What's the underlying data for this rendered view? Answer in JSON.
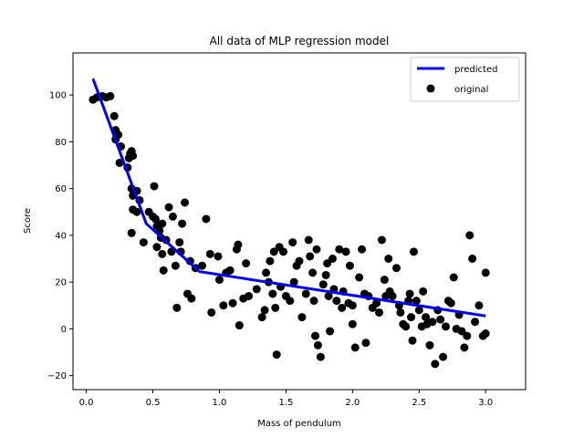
{
  "chart_data": {
    "type": "scatter",
    "title": "All data of MLP regression model",
    "xlabel": "Mass of pendulum",
    "ylabel": "Score",
    "xlim": [
      -0.1,
      3.3
    ],
    "ylim": [
      -26,
      118
    ],
    "xticks": [
      0.0,
      0.5,
      1.0,
      1.5,
      2.0,
      2.5,
      3.0
    ],
    "xtick_labels": [
      "0.0",
      "0.5",
      "1.0",
      "1.5",
      "2.0",
      "2.5",
      "3.0"
    ],
    "yticks": [
      -20,
      0,
      20,
      40,
      60,
      80,
      100
    ],
    "ytick_labels": [
      "−20",
      "0",
      "20",
      "40",
      "60",
      "80",
      "100"
    ],
    "grid": false,
    "legend_position": "top-right",
    "series": [
      {
        "name": "predicted",
        "kind": "line",
        "color": "#0000ff",
        "points": [
          [
            0.05,
            107
          ],
          [
            0.45,
            45
          ],
          [
            0.85,
            24.5
          ],
          [
            3.0,
            5.5
          ]
        ]
      },
      {
        "name": "original",
        "kind": "scatter",
        "color": "#000000",
        "points": [
          [
            0.05,
            98
          ],
          [
            0.08,
            99
          ],
          [
            0.12,
            99.5
          ],
          [
            0.15,
            99
          ],
          [
            0.18,
            99.5
          ],
          [
            0.21,
            91
          ],
          [
            0.22,
            85
          ],
          [
            0.22,
            81
          ],
          [
            0.24,
            83
          ],
          [
            0.25,
            71
          ],
          [
            0.26,
            78
          ],
          [
            0.31,
            69
          ],
          [
            0.32,
            73
          ],
          [
            0.33,
            75
          ],
          [
            0.34,
            76
          ],
          [
            0.35,
            74
          ],
          [
            0.34,
            60
          ],
          [
            0.35,
            57
          ],
          [
            0.38,
            59
          ],
          [
            0.35,
            51
          ],
          [
            0.34,
            41
          ],
          [
            0.38,
            50
          ],
          [
            0.4,
            55
          ],
          [
            0.43,
            37
          ],
          [
            0.47,
            50
          ],
          [
            0.5,
            48
          ],
          [
            0.51,
            61
          ],
          [
            0.52,
            47
          ],
          [
            0.53,
            44
          ],
          [
            0.53,
            35
          ],
          [
            0.55,
            42
          ],
          [
            0.56,
            39
          ],
          [
            0.57,
            45
          ],
          [
            0.57,
            32
          ],
          [
            0.58,
            25
          ],
          [
            0.6,
            38
          ],
          [
            0.62,
            52
          ],
          [
            0.64,
            33
          ],
          [
            0.65,
            48
          ],
          [
            0.67,
            27
          ],
          [
            0.68,
            9
          ],
          [
            0.7,
            37
          ],
          [
            0.71,
            33
          ],
          [
            0.72,
            45
          ],
          [
            0.74,
            54
          ],
          [
            0.76,
            15
          ],
          [
            0.78,
            29
          ],
          [
            0.79,
            13
          ],
          [
            0.82,
            26
          ],
          [
            0.87,
            27
          ],
          [
            0.9,
            47
          ],
          [
            0.93,
            32
          ],
          [
            0.94,
            7
          ],
          [
            0.99,
            31
          ],
          [
            1.0,
            21
          ],
          [
            1.03,
            10
          ],
          [
            1.05,
            24
          ],
          [
            1.08,
            25
          ],
          [
            1.1,
            11
          ],
          [
            1.13,
            34
          ],
          [
            1.14,
            36
          ],
          [
            1.15,
            1.5
          ],
          [
            1.18,
            13
          ],
          [
            1.2,
            28
          ],
          [
            1.22,
            14
          ],
          [
            1.28,
            17
          ],
          [
            1.32,
            5
          ],
          [
            1.34,
            8
          ],
          [
            1.35,
            24
          ],
          [
            1.37,
            20
          ],
          [
            1.38,
            29
          ],
          [
            1.4,
            15
          ],
          [
            1.41,
            33
          ],
          [
            1.42,
            9
          ],
          [
            1.43,
            -11
          ],
          [
            1.45,
            35
          ],
          [
            1.46,
            18
          ],
          [
            1.48,
            33
          ],
          [
            1.5,
            14
          ],
          [
            1.53,
            12
          ],
          [
            1.55,
            37
          ],
          [
            1.56,
            20
          ],
          [
            1.58,
            27
          ],
          [
            1.6,
            29
          ],
          [
            1.62,
            5
          ],
          [
            1.65,
            15
          ],
          [
            1.67,
            38
          ],
          [
            1.68,
            31
          ],
          [
            1.7,
            24
          ],
          [
            1.71,
            12
          ],
          [
            1.72,
            -3
          ],
          [
            1.73,
            34
          ],
          [
            1.74,
            -7
          ],
          [
            1.76,
            -12
          ],
          [
            1.78,
            19
          ],
          [
            1.8,
            23
          ],
          [
            1.81,
            28
          ],
          [
            1.82,
            14
          ],
          [
            1.83,
            -1
          ],
          [
            1.85,
            30
          ],
          [
            1.86,
            17
          ],
          [
            1.88,
            12
          ],
          [
            1.9,
            34
          ],
          [
            1.92,
            9
          ],
          [
            1.93,
            16
          ],
          [
            1.95,
            33
          ],
          [
            1.97,
            11
          ],
          [
            1.98,
            27
          ],
          [
            2.0,
            10
          ],
          [
            2.0,
            2
          ],
          [
            2.02,
            -8
          ],
          [
            2.05,
            22
          ],
          [
            2.07,
            34
          ],
          [
            2.09,
            15
          ],
          [
            2.1,
            -6
          ],
          [
            2.12,
            14
          ],
          [
            2.15,
            9
          ],
          [
            2.18,
            11
          ],
          [
            2.2,
            7
          ],
          [
            2.22,
            38
          ],
          [
            2.24,
            21
          ],
          [
            2.25,
            14
          ],
          [
            2.27,
            30
          ],
          [
            2.28,
            16
          ],
          [
            2.3,
            14
          ],
          [
            2.33,
            26
          ],
          [
            2.35,
            10
          ],
          [
            2.36,
            7
          ],
          [
            2.38,
            2
          ],
          [
            2.4,
            1
          ],
          [
            2.42,
            12
          ],
          [
            2.43,
            15
          ],
          [
            2.44,
            5
          ],
          [
            2.45,
            -5
          ],
          [
            2.46,
            33
          ],
          [
            2.48,
            12
          ],
          [
            2.5,
            8
          ],
          [
            2.52,
            1
          ],
          [
            2.53,
            16
          ],
          [
            2.55,
            5
          ],
          [
            2.56,
            2
          ],
          [
            2.58,
            -7
          ],
          [
            2.6,
            3
          ],
          [
            2.62,
            -15
          ],
          [
            2.64,
            8
          ],
          [
            2.66,
            4
          ],
          [
            2.68,
            -12
          ],
          [
            2.7,
            1
          ],
          [
            2.72,
            12
          ],
          [
            2.74,
            11
          ],
          [
            2.76,
            22
          ],
          [
            2.78,
            0
          ],
          [
            2.8,
            6
          ],
          [
            2.82,
            -1
          ],
          [
            2.84,
            -8
          ],
          [
            2.86,
            -3
          ],
          [
            2.88,
            40
          ],
          [
            2.9,
            30
          ],
          [
            2.92,
            3
          ],
          [
            2.95,
            10
          ],
          [
            2.98,
            -3
          ],
          [
            3.0,
            24
          ],
          [
            3.0,
            -2
          ]
        ]
      }
    ]
  }
}
